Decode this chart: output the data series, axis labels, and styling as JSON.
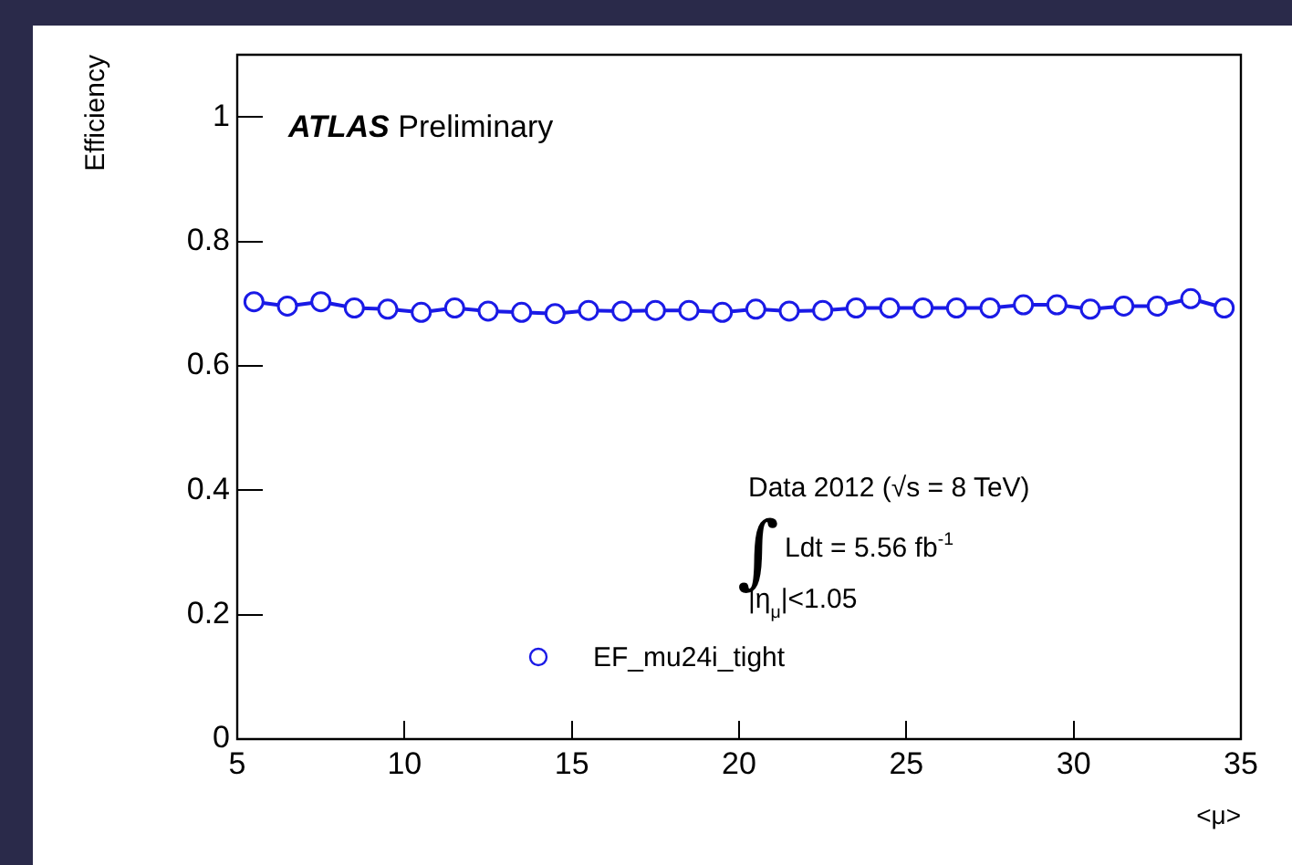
{
  "chart_data": {
    "type": "line",
    "xlabel": "<μ>",
    "ylabel": "Efficiency",
    "annotations": [
      "ATLAS Preliminary",
      "Data 2012 (√s = 8 TeV)",
      "∫Ldt = 5.56 fb$^{-1}$",
      "|η$_{μ}$|<1.05"
    ],
    "x": [
      5.5,
      6.5,
      7.5,
      8.5,
      9.5,
      10.5,
      11.5,
      12.5,
      13.5,
      14.5,
      15.5,
      16.5,
      17.5,
      18.5,
      19.5,
      20.5,
      21.5,
      22.5,
      23.5,
      24.5,
      25.5,
      26.5,
      27.5,
      28.5,
      29.5,
      30.5,
      31.5,
      32.5,
      33.5,
      34.5
    ],
    "series": [
      {
        "name": "EF_mu24i_tight",
        "color": "#1a1ae6",
        "values": [
          0.703,
          0.696,
          0.703,
          0.693,
          0.691,
          0.686,
          0.693,
          0.688,
          0.686,
          0.684,
          0.689,
          0.688,
          0.689,
          0.689,
          0.686,
          0.691,
          0.688,
          0.689,
          0.693,
          0.693,
          0.693,
          0.693,
          0.693,
          0.698,
          0.698,
          0.691,
          0.696,
          0.696,
          0.708,
          0.693
        ]
      }
    ],
    "xlim": [
      5,
      35
    ],
    "xticks": [
      5,
      10,
      15,
      20,
      25,
      30,
      35
    ],
    "ylim": [
      0,
      1.1
    ],
    "yticks": [
      0,
      0.2,
      0.4,
      0.6,
      0.8,
      1
    ],
    "grid": false,
    "legend": "bottom",
    "marker": "circle",
    "line_style": "solid"
  }
}
